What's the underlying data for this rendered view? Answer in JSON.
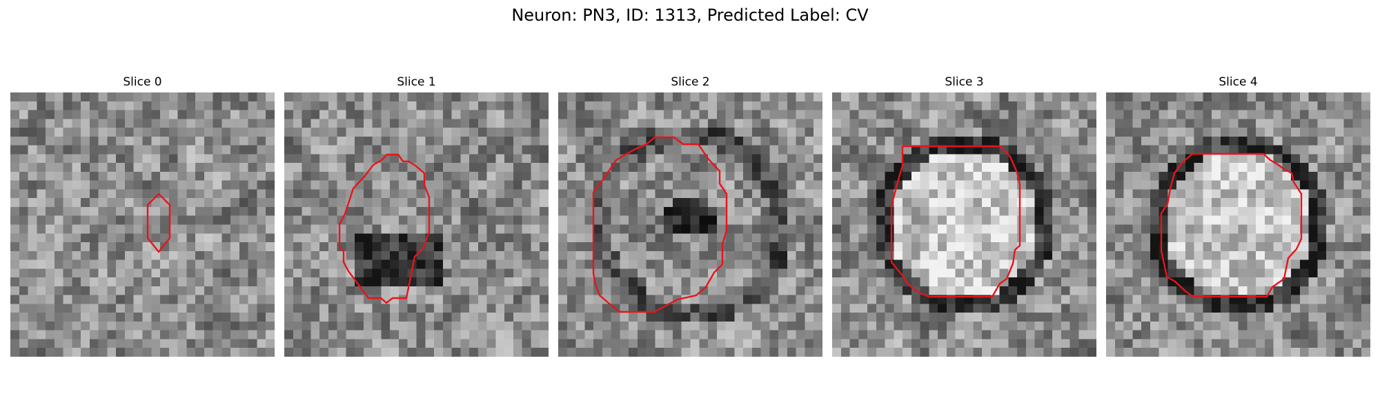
{
  "figure": {
    "title": "Neuron: PN3, ID: 1313, Predicted Label: CV"
  },
  "panels": [
    {
      "title": "Slice 0",
      "seed": 11,
      "mode": "plain"
    },
    {
      "title": "Slice 1",
      "seed": 23,
      "mode": "dark-lower"
    },
    {
      "title": "Slice 2",
      "seed": 37,
      "mode": "ring-dark-center"
    },
    {
      "title": "Slice 3",
      "seed": 41,
      "mode": "ring-bright"
    },
    {
      "title": "Slice 4",
      "seed": 53,
      "mode": "ring-bright"
    }
  ],
  "colors": {
    "contour": "#e8141b",
    "colormap": "grayscale"
  }
}
